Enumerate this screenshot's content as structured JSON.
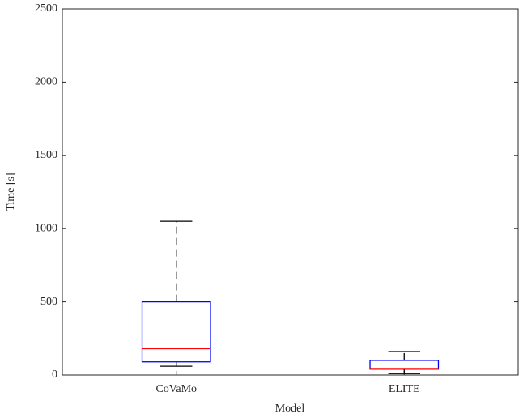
{
  "chart_data": {
    "type": "box",
    "x_label": "Model",
    "y_label": "Time [s]",
    "categories": [
      "CoVaMo",
      "ELITE"
    ],
    "values": [
      {
        "min": 60,
        "q1": 90,
        "median": 180,
        "q3": 500,
        "max": 1050
      },
      {
        "min": 10,
        "q1": 40,
        "median": 45,
        "q3": 100,
        "max": 160
      }
    ],
    "box_color": "#0000ff",
    "median_color": "#ff0000",
    "whisker_color": "#000000",
    "ylim": [
      0,
      2500
    ],
    "yticks": [
      0,
      500,
      1000,
      1500,
      2000,
      2500
    ]
  }
}
